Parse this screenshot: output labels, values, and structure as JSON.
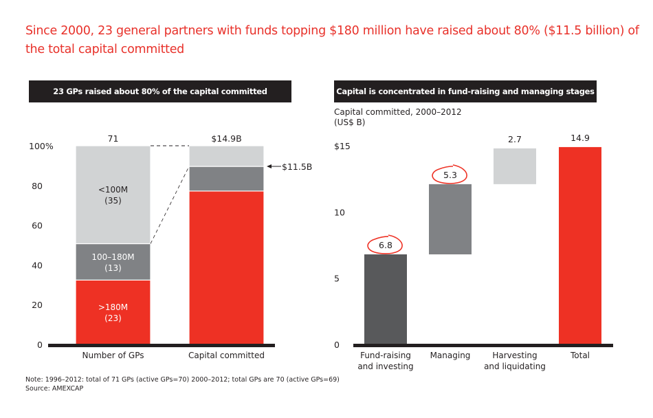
{
  "headline": "Since 2000, 23 general partners with funds topping $180 million have raised about 80% ($11.5 billion) of the total capital committed",
  "colors": {
    "red": "#ee3124",
    "dark_gray": "#58595b",
    "mid_gray": "#808285",
    "light_gray": "#d1d3d4",
    "black": "#231f20"
  },
  "chart_data": [
    {
      "type": "bar",
      "stacked": true,
      "title": "23 GPs raised about 80% of the capital committed",
      "categories": [
        "Number of GPs",
        "Capital committed"
      ],
      "totals": [
        "71",
        "$14.9B"
      ],
      "ylim": [
        0,
        100
      ],
      "yticks": [
        0,
        20,
        40,
        60,
        80,
        100
      ],
      "ytick_labels": [
        "0",
        "20",
        "40",
        "60",
        "80",
        "100%"
      ],
      "series": [
        {
          "name": ">180M",
          "count_label": "(23)",
          "values": [
            32.4,
            77.2
          ],
          "color": "#ee3124"
        },
        {
          "name": "100–180M",
          "count_label": "(13)",
          "values": [
            18.3,
            12.4
          ],
          "color": "#808285"
        },
        {
          "name": "<100M",
          "count_label": "(35)",
          "values": [
            49.3,
            10.4
          ],
          "color": "#d1d3d4"
        }
      ],
      "annotation": "$11.5B",
      "grid": false
    },
    {
      "type": "bar",
      "waterfall": true,
      "title": "Capital is concentrated in fund-raising and managing stages",
      "subtitle": [
        "Capital committed, 2000–2012",
        "(US$ B)"
      ],
      "categories": [
        "Fund-raising and investing",
        "Managing",
        "Harvesting and liquidating",
        "Total"
      ],
      "category_lines": [
        [
          "Fund-raising",
          "and investing"
        ],
        [
          "Managing"
        ],
        [
          "Harvesting",
          "and liquidating"
        ],
        [
          "Total"
        ]
      ],
      "values": [
        6.8,
        5.3,
        2.7,
        14.9
      ],
      "value_labels": [
        "6.8",
        "5.3",
        "2.7",
        "14.9"
      ],
      "bases": [
        0,
        6.8,
        12.1,
        0
      ],
      "circled": [
        true,
        true,
        false,
        false
      ],
      "colors": [
        "#58595b",
        "#808285",
        "#d1d3d4",
        "#ee3124"
      ],
      "ylim": [
        0,
        15
      ],
      "yticks": [
        0,
        5,
        10,
        15
      ],
      "ytick_labels": [
        "0",
        "5",
        "10",
        "$15"
      ],
      "grid": false
    }
  ],
  "footer": {
    "note": "Note: 1996–2012: total of 71 GPs (active GPs=70) 2000–2012; total GPs are 70 (active GPs=69)",
    "source": "Source: AMEXCAP"
  }
}
